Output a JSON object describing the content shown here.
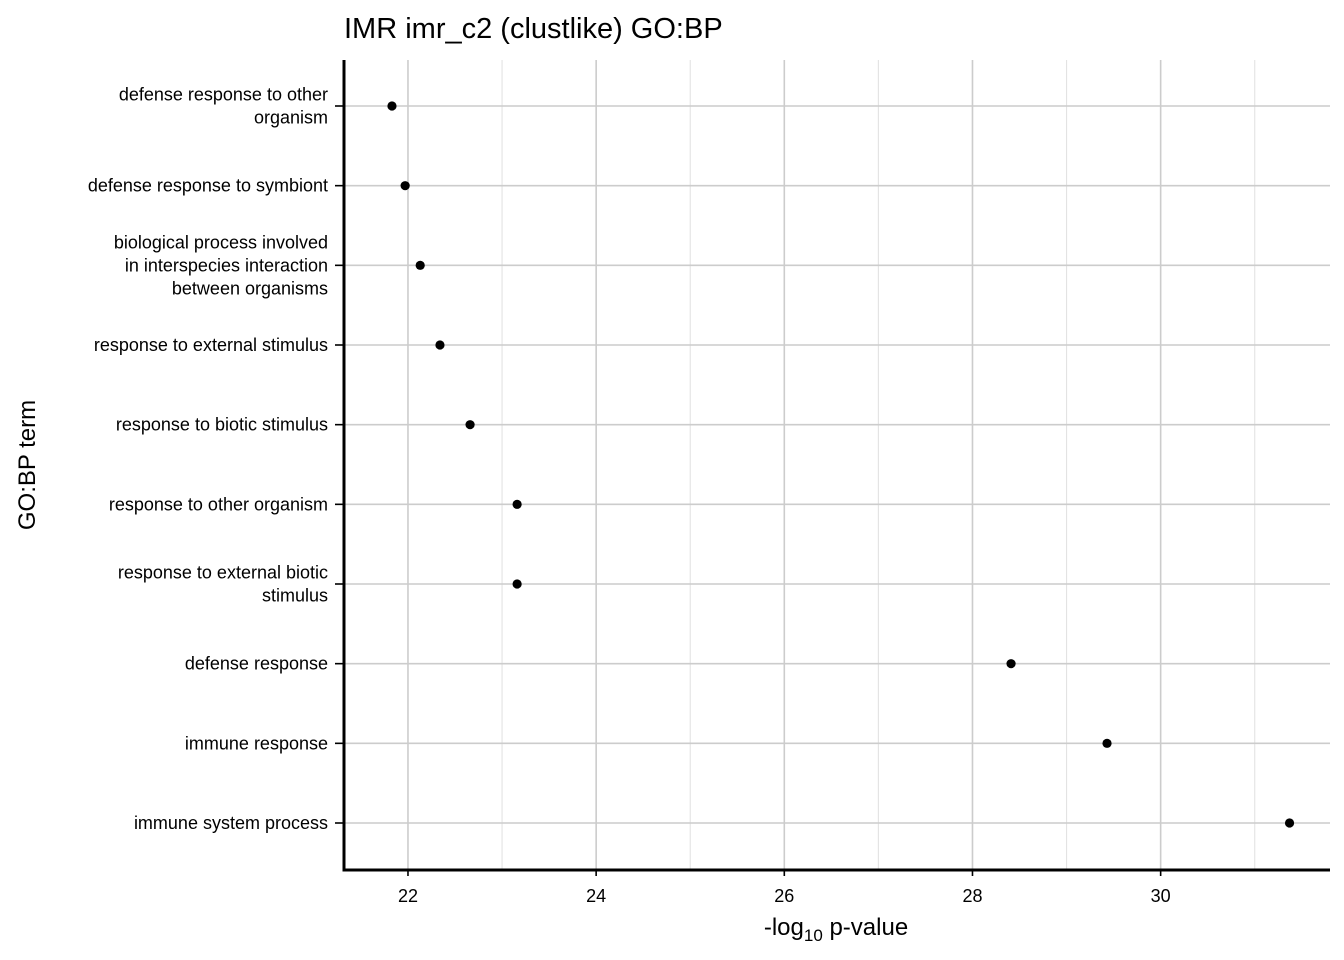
{
  "chart_data": {
    "type": "scatter",
    "title": "IMR imr_c2 (clustlike) GO:BP",
    "xlabel": {
      "prefix": "-log",
      "subscript": "10",
      "suffix": " p-value"
    },
    "ylabel": "GO:BP term",
    "xlim": [
      21.32,
      31.8
    ],
    "x_ticks": [
      22,
      24,
      26,
      28,
      30
    ],
    "grid": true,
    "legend": "none",
    "point_color": "#000000",
    "categories": [
      "defense response to other organism",
      "defense response to symbiont",
      "biological process involved in interspecies interaction between organisms",
      "response to external stimulus",
      "response to biotic stimulus",
      "response to other organism",
      "response to external biotic stimulus",
      "defense response",
      "immune response",
      "immune system process"
    ],
    "category_label_lines": [
      [
        "defense response to other",
        "organism"
      ],
      [
        "defense response to symbiont"
      ],
      [
        "biological process involved",
        "in interspecies interaction",
        "between organisms"
      ],
      [
        "response to external stimulus"
      ],
      [
        "response to biotic stimulus"
      ],
      [
        "response to other organism"
      ],
      [
        "response to external biotic",
        "stimulus"
      ],
      [
        "defense response"
      ],
      [
        "immune response"
      ],
      [
        "immune system process"
      ]
    ],
    "values": [
      21.83,
      21.97,
      22.13,
      22.34,
      22.66,
      23.16,
      23.16,
      28.41,
      29.43,
      31.37
    ]
  }
}
